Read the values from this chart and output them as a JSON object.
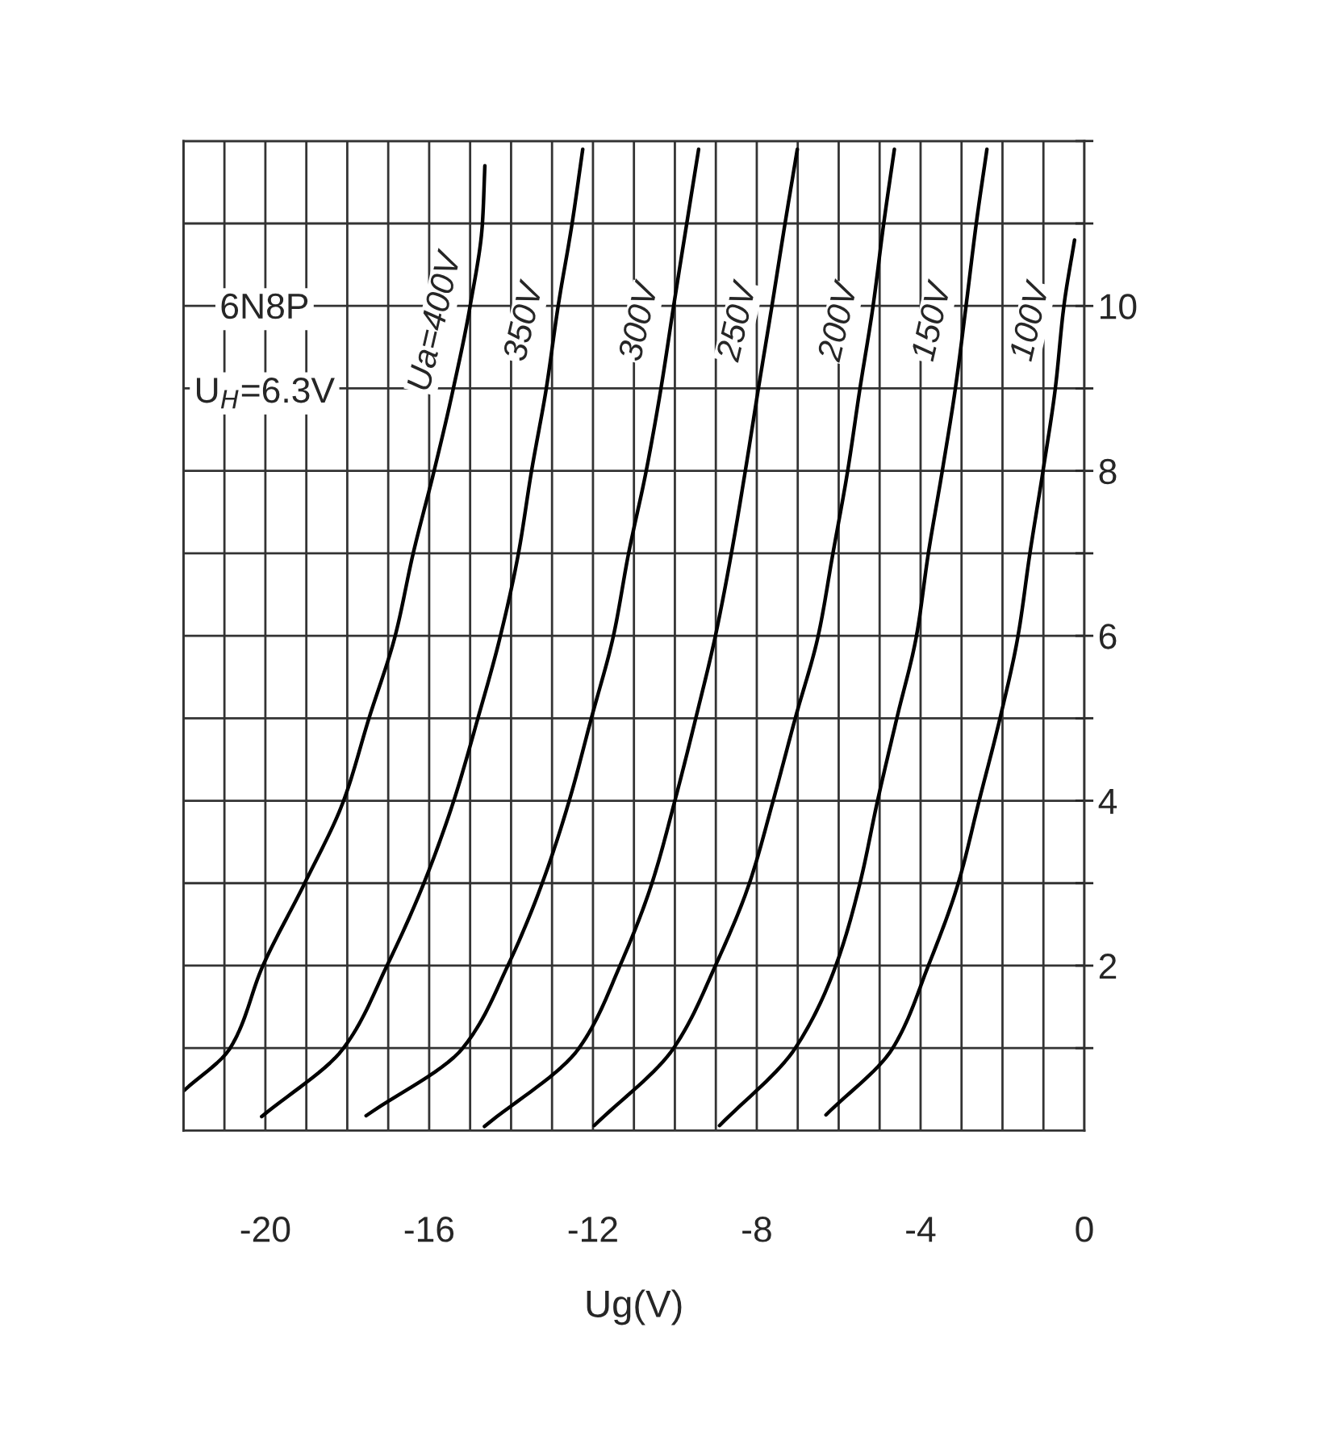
{
  "chart_data": {
    "type": "line",
    "xlabel": "Ug(V)",
    "annotations": [
      "6N8P",
      "U$_{H}$=6.3V"
    ],
    "xlim": [
      -22,
      0
    ],
    "ylim": [
      0,
      12
    ],
    "xticks": [
      {
        "value": -22,
        "label": null
      },
      {
        "value": -21,
        "label": null
      },
      -20,
      {
        "value": -19,
        "label": null
      },
      {
        "value": -18,
        "label": null
      },
      {
        "value": -17,
        "label": null
      },
      -16,
      {
        "value": -15,
        "label": null
      },
      {
        "value": -14,
        "label": null
      },
      {
        "value": -13,
        "label": null
      },
      -12,
      {
        "value": -11,
        "label": null
      },
      {
        "value": -10,
        "label": null
      },
      {
        "value": -9,
        "label": null
      },
      -8,
      {
        "value": -7,
        "label": null
      },
      {
        "value": -6,
        "label": null
      },
      {
        "value": -5,
        "label": null
      },
      -4,
      {
        "value": -3,
        "label": null
      },
      {
        "value": -2,
        "label": null
      },
      {
        "value": -1,
        "label": null
      },
      0
    ],
    "yticks": [
      {
        "value": 1,
        "label": null
      },
      2,
      {
        "value": 3,
        "label": null
      },
      4,
      {
        "value": 5,
        "label": null
      },
      6,
      {
        "value": 7,
        "label": null
      },
      8,
      {
        "value": 9,
        "label": null
      },
      10,
      {
        "value": 11,
        "label": null
      },
      {
        "value": 12,
        "label": null
      }
    ],
    "grid": true,
    "line_style": "solid",
    "series": [
      {
        "name": "Ua=400V",
        "color": "#000000",
        "x": [
          -22,
          -20.86,
          -20.06,
          -19.04,
          -18.09,
          -17.47,
          -16.83,
          -16.39,
          -15.88,
          -15.41,
          -15.0,
          -14.7,
          -14.64
        ],
        "values": [
          0.48,
          1,
          2,
          3,
          4,
          5,
          6,
          7,
          8,
          9,
          10,
          11,
          11.7
        ]
      },
      {
        "name": "350V",
        "color": "#000000",
        "x": [
          -20.09,
          -18.09,
          -17.03,
          -16.13,
          -15.4,
          -14.81,
          -14.26,
          -13.82,
          -13.5,
          -13.14,
          -12.85,
          -12.51,
          -12.25
        ],
        "values": [
          0.17,
          1,
          2,
          3,
          4,
          5,
          6,
          7,
          8,
          9,
          10,
          11,
          11.9
        ]
      },
      {
        "name": "300V",
        "color": "#000000",
        "x": [
          -17.54,
          -15.18,
          -14.08,
          -13.24,
          -12.58,
          -12.04,
          -11.5,
          -11.13,
          -10.7,
          -10.34,
          -10.03,
          -9.71,
          -9.42
        ],
        "values": [
          0.18,
          1,
          2,
          3,
          4,
          5,
          6,
          7,
          8,
          9,
          10,
          11,
          11.9
        ]
      },
      {
        "name": "250V",
        "color": "#000000",
        "x": [
          -14.65,
          -12.34,
          -11.34,
          -10.56,
          -10.0,
          -9.49,
          -9.01,
          -8.62,
          -8.28,
          -7.96,
          -7.63,
          -7.31,
          -7.01
        ],
        "values": [
          0.05,
          1,
          2,
          3,
          4,
          5,
          6,
          7,
          8,
          9,
          10,
          11,
          11.9
        ]
      },
      {
        "name": "200V",
        "color": "#000000",
        "x": [
          -11.97,
          -10.03,
          -9.01,
          -8.18,
          -7.6,
          -7.06,
          -6.5,
          -6.14,
          -5.78,
          -5.48,
          -5.16,
          -4.9,
          -4.64
        ],
        "values": [
          0.06,
          1,
          2,
          3,
          4,
          5,
          6,
          7,
          8,
          9,
          10,
          11,
          11.9
        ]
      },
      {
        "name": "150V",
        "color": "#000000",
        "x": [
          -8.91,
          -7.06,
          -6.07,
          -5.48,
          -5.05,
          -4.58,
          -4.1,
          -3.81,
          -3.47,
          -3.15,
          -2.89,
          -2.64,
          -2.38
        ],
        "values": [
          0.06,
          1,
          2,
          3,
          4,
          5,
          6,
          7,
          8,
          9,
          10,
          11,
          11.9
        ]
      },
      {
        "name": "100V",
        "color": "#000000",
        "x": [
          -6.31,
          -4.68,
          -3.81,
          -3.08,
          -2.57,
          -2.06,
          -1.62,
          -1.33,
          -1.01,
          -0.71,
          -0.5,
          -0.24
        ],
        "values": [
          0.19,
          1,
          2,
          3,
          4,
          5,
          6,
          7,
          8,
          9,
          10,
          10.8
        ]
      }
    ]
  }
}
